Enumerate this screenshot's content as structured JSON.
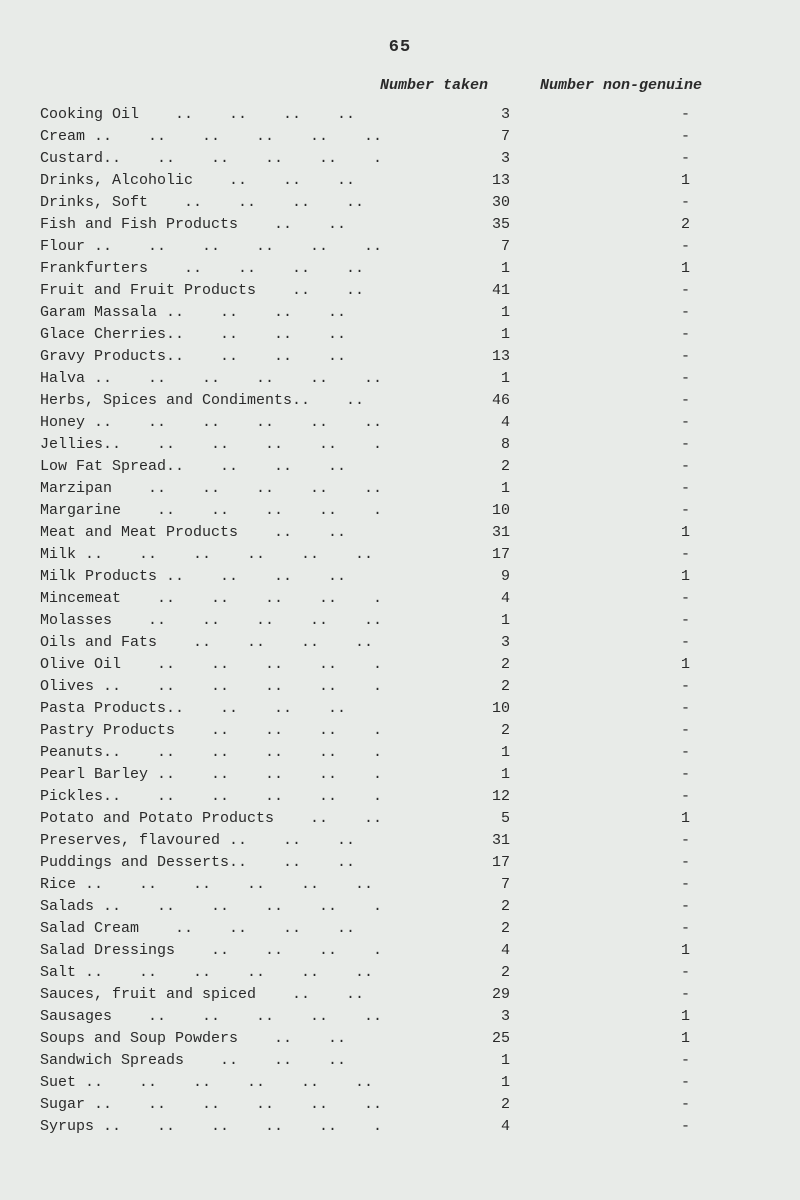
{
  "page_number": "65",
  "headers": {
    "taken": "Number taken",
    "non_genuine": "Number non-genuine"
  },
  "dots_unit": " ..",
  "rows": [
    {
      "label": "Cooking Oil",
      "dots": 5,
      "taken": "3",
      "nongen": "-"
    },
    {
      "label": "Cream ..",
      "dots": 5,
      "taken": "7",
      "nongen": "-"
    },
    {
      "label": "Custard..",
      "dots": 5,
      "taken": "3",
      "nongen": "-"
    },
    {
      "label": "Drinks, Alcoholic",
      "dots": 4,
      "taken": "13",
      "nongen": "1"
    },
    {
      "label": "Drinks, Soft",
      "dots": 5,
      "taken": "30",
      "nongen": "-"
    },
    {
      "label": "Fish and Fish Products",
      "dots": 3,
      "taken": "35",
      "nongen": "2"
    },
    {
      "label": "Flour ..",
      "dots": 5,
      "taken": "7",
      "nongen": "-"
    },
    {
      "label": "Frankfurters",
      "dots": 5,
      "taken": "1",
      "nongen": "1"
    },
    {
      "label": "Fruit and Fruit Products",
      "dots": 3,
      "taken": "41",
      "nongen": "-"
    },
    {
      "label": "Garam Massala ..",
      "dots": 4,
      "taken": "1",
      "nongen": "-"
    },
    {
      "label": "Glace Cherries..",
      "dots": 4,
      "taken": "1",
      "nongen": "-"
    },
    {
      "label": "Gravy Products..",
      "dots": 4,
      "taken": "13",
      "nongen": "-"
    },
    {
      "label": "Halva ..",
      "dots": 5,
      "taken": "1",
      "nongen": "-"
    },
    {
      "label": "Herbs, Spices and Condiments..",
      "dots": 2,
      "taken": "46",
      "nongen": "-"
    },
    {
      "label": "Honey ..",
      "dots": 5,
      "taken": "4",
      "nongen": "-"
    },
    {
      "label": "Jellies..",
      "dots": 5,
      "taken": "8",
      "nongen": "-"
    },
    {
      "label": "Low Fat Spread..",
      "dots": 4,
      "taken": "2",
      "nongen": "-"
    },
    {
      "label": "Marzipan",
      "dots": 5,
      "taken": "1",
      "nongen": "-"
    },
    {
      "label": "Margarine",
      "dots": 5,
      "taken": "10",
      "nongen": "-"
    },
    {
      "label": "Meat and Meat Products",
      "dots": 3,
      "taken": "31",
      "nongen": "1"
    },
    {
      "label": "Milk ..",
      "dots": 5,
      "taken": "17",
      "nongen": "-"
    },
    {
      "label": "Milk Products ..",
      "dots": 4,
      "taken": "9",
      "nongen": "1"
    },
    {
      "label": "Mincemeat",
      "dots": 5,
      "taken": "4",
      "nongen": "-"
    },
    {
      "label": "Molasses",
      "dots": 5,
      "taken": "1",
      "nongen": "-"
    },
    {
      "label": "Oils and Fats",
      "dots": 5,
      "taken": "3",
      "nongen": "-"
    },
    {
      "label": "Olive Oil",
      "dots": 5,
      "taken": "2",
      "nongen": "1"
    },
    {
      "label": "Olives ..",
      "dots": 5,
      "taken": "2",
      "nongen": "-"
    },
    {
      "label": "Pasta Products..",
      "dots": 4,
      "taken": "10",
      "nongen": "-"
    },
    {
      "label": "Pastry Products",
      "dots": 4,
      "taken": "2",
      "nongen": "-"
    },
    {
      "label": "Peanuts..",
      "dots": 5,
      "taken": "1",
      "nongen": "-"
    },
    {
      "label": "Pearl Barley ..",
      "dots": 4,
      "taken": "1",
      "nongen": "-"
    },
    {
      "label": "Pickles..",
      "dots": 5,
      "taken": "12",
      "nongen": "-"
    },
    {
      "label": "Potato and Potato Products",
      "dots": 2,
      "taken": "5",
      "nongen": "1"
    },
    {
      "label": "Preserves, flavoured ..",
      "dots": 3,
      "taken": "31",
      "nongen": "-"
    },
    {
      "label": "Puddings and Desserts..",
      "dots": 3,
      "taken": "17",
      "nongen": "-"
    },
    {
      "label": "Rice ..",
      "dots": 5,
      "taken": "7",
      "nongen": "-"
    },
    {
      "label": "Salads ..",
      "dots": 5,
      "taken": "2",
      "nongen": "-"
    },
    {
      "label": "Salad Cream",
      "dots": 5,
      "taken": "2",
      "nongen": "-"
    },
    {
      "label": "Salad Dressings",
      "dots": 4,
      "taken": "4",
      "nongen": "1"
    },
    {
      "label": "Salt ..",
      "dots": 5,
      "taken": "2",
      "nongen": "-"
    },
    {
      "label": "Sauces, fruit and spiced",
      "dots": 3,
      "taken": "29",
      "nongen": "-"
    },
    {
      "label": "Sausages",
      "dots": 5,
      "taken": "3",
      "nongen": "1"
    },
    {
      "label": "Soups and Soup Powders",
      "dots": 3,
      "taken": "25",
      "nongen": "1"
    },
    {
      "label": "Sandwich Spreads",
      "dots": 4,
      "taken": "1",
      "nongen": "-"
    },
    {
      "label": "Suet ..",
      "dots": 5,
      "taken": "1",
      "nongen": "-"
    },
    {
      "label": "Sugar ..",
      "dots": 5,
      "taken": "2",
      "nongen": "-"
    },
    {
      "label": "Syrups ..",
      "dots": 5,
      "taken": "4",
      "nongen": "-"
    }
  ],
  "style": {
    "background_color": "#e8ebe8",
    "text_color": "#2a2a2a",
    "font_family": "Courier New, monospace",
    "font_size_pt": 11
  }
}
